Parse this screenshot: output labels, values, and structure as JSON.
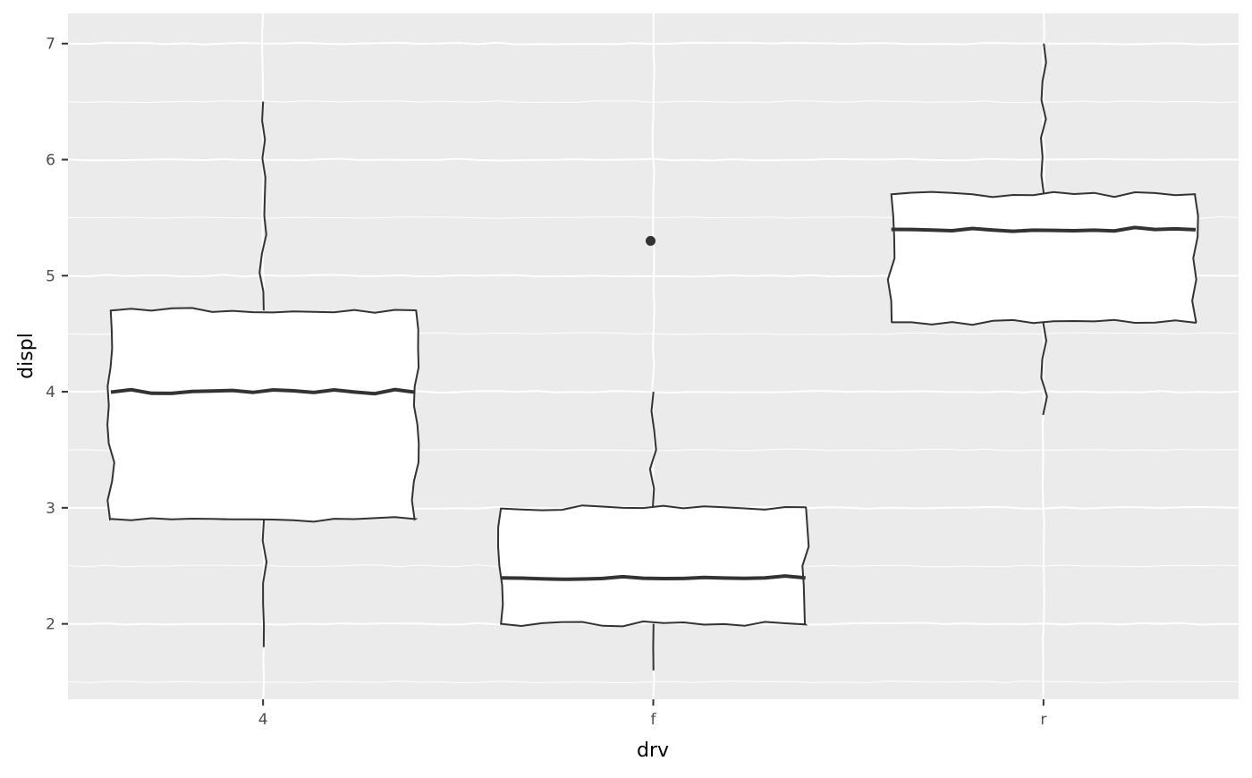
{
  "chart_data": {
    "type": "boxplot",
    "title": "",
    "xlabel": "drv",
    "ylabel": "displ",
    "categories": [
      "4",
      "f",
      "r"
    ],
    "ylim": [
      1.35,
      7.26
    ],
    "yticks": [
      2,
      3,
      4,
      5,
      6,
      7
    ],
    "grid": true,
    "style": "hand-drawn (jittered lines)",
    "colors": {
      "panel": "#ebebeb",
      "grid": "#ffffff",
      "box_fill": "#ffffff",
      "line": "#333333"
    },
    "boxes": [
      {
        "category": "4",
        "whisker_low": 1.8,
        "q1": 2.9,
        "median": 4.0,
        "q3": 4.7,
        "whisker_high": 6.5,
        "outliers": []
      },
      {
        "category": "f",
        "whisker_low": 1.6,
        "q1": 2.0,
        "median": 2.4,
        "q3": 3.0,
        "whisker_high": 4.0,
        "outliers": [
          5.3
        ]
      },
      {
        "category": "r",
        "whisker_low": 3.8,
        "q1": 4.6,
        "median": 5.4,
        "q3": 5.7,
        "whisker_high": 7.0,
        "outliers": []
      }
    ]
  }
}
